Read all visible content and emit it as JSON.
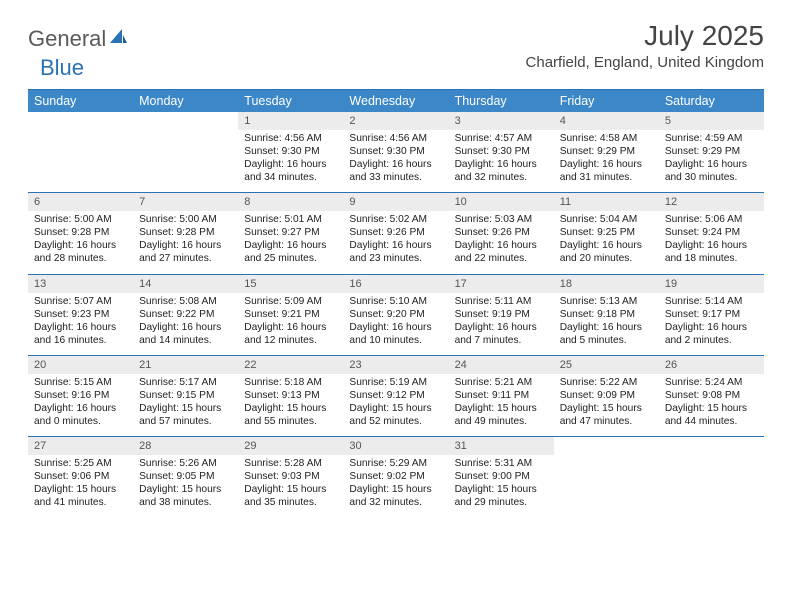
{
  "logo": {
    "general": "General",
    "blue": "Blue"
  },
  "title": "July 2025",
  "location": "Charfield, England, United Kingdom",
  "header_bg": "#3b87c8",
  "rule_color": "#2a72b5",
  "daynum_bg": "#ececec",
  "font_family": "Arial",
  "day_headers": [
    "Sunday",
    "Monday",
    "Tuesday",
    "Wednesday",
    "Thursday",
    "Friday",
    "Saturday"
  ],
  "weeks": [
    [
      {
        "n": "",
        "sunrise": "",
        "sunset": "",
        "daylight": ""
      },
      {
        "n": "",
        "sunrise": "",
        "sunset": "",
        "daylight": ""
      },
      {
        "n": "1",
        "sunrise": "Sunrise: 4:56 AM",
        "sunset": "Sunset: 9:30 PM",
        "daylight": "Daylight: 16 hours and 34 minutes."
      },
      {
        "n": "2",
        "sunrise": "Sunrise: 4:56 AM",
        "sunset": "Sunset: 9:30 PM",
        "daylight": "Daylight: 16 hours and 33 minutes."
      },
      {
        "n": "3",
        "sunrise": "Sunrise: 4:57 AM",
        "sunset": "Sunset: 9:30 PM",
        "daylight": "Daylight: 16 hours and 32 minutes."
      },
      {
        "n": "4",
        "sunrise": "Sunrise: 4:58 AM",
        "sunset": "Sunset: 9:29 PM",
        "daylight": "Daylight: 16 hours and 31 minutes."
      },
      {
        "n": "5",
        "sunrise": "Sunrise: 4:59 AM",
        "sunset": "Sunset: 9:29 PM",
        "daylight": "Daylight: 16 hours and 30 minutes."
      }
    ],
    [
      {
        "n": "6",
        "sunrise": "Sunrise: 5:00 AM",
        "sunset": "Sunset: 9:28 PM",
        "daylight": "Daylight: 16 hours and 28 minutes."
      },
      {
        "n": "7",
        "sunrise": "Sunrise: 5:00 AM",
        "sunset": "Sunset: 9:28 PM",
        "daylight": "Daylight: 16 hours and 27 minutes."
      },
      {
        "n": "8",
        "sunrise": "Sunrise: 5:01 AM",
        "sunset": "Sunset: 9:27 PM",
        "daylight": "Daylight: 16 hours and 25 minutes."
      },
      {
        "n": "9",
        "sunrise": "Sunrise: 5:02 AM",
        "sunset": "Sunset: 9:26 PM",
        "daylight": "Daylight: 16 hours and 23 minutes."
      },
      {
        "n": "10",
        "sunrise": "Sunrise: 5:03 AM",
        "sunset": "Sunset: 9:26 PM",
        "daylight": "Daylight: 16 hours and 22 minutes."
      },
      {
        "n": "11",
        "sunrise": "Sunrise: 5:04 AM",
        "sunset": "Sunset: 9:25 PM",
        "daylight": "Daylight: 16 hours and 20 minutes."
      },
      {
        "n": "12",
        "sunrise": "Sunrise: 5:06 AM",
        "sunset": "Sunset: 9:24 PM",
        "daylight": "Daylight: 16 hours and 18 minutes."
      }
    ],
    [
      {
        "n": "13",
        "sunrise": "Sunrise: 5:07 AM",
        "sunset": "Sunset: 9:23 PM",
        "daylight": "Daylight: 16 hours and 16 minutes."
      },
      {
        "n": "14",
        "sunrise": "Sunrise: 5:08 AM",
        "sunset": "Sunset: 9:22 PM",
        "daylight": "Daylight: 16 hours and 14 minutes."
      },
      {
        "n": "15",
        "sunrise": "Sunrise: 5:09 AM",
        "sunset": "Sunset: 9:21 PM",
        "daylight": "Daylight: 16 hours and 12 minutes."
      },
      {
        "n": "16",
        "sunrise": "Sunrise: 5:10 AM",
        "sunset": "Sunset: 9:20 PM",
        "daylight": "Daylight: 16 hours and 10 minutes."
      },
      {
        "n": "17",
        "sunrise": "Sunrise: 5:11 AM",
        "sunset": "Sunset: 9:19 PM",
        "daylight": "Daylight: 16 hours and 7 minutes."
      },
      {
        "n": "18",
        "sunrise": "Sunrise: 5:13 AM",
        "sunset": "Sunset: 9:18 PM",
        "daylight": "Daylight: 16 hours and 5 minutes."
      },
      {
        "n": "19",
        "sunrise": "Sunrise: 5:14 AM",
        "sunset": "Sunset: 9:17 PM",
        "daylight": "Daylight: 16 hours and 2 minutes."
      }
    ],
    [
      {
        "n": "20",
        "sunrise": "Sunrise: 5:15 AM",
        "sunset": "Sunset: 9:16 PM",
        "daylight": "Daylight: 16 hours and 0 minutes."
      },
      {
        "n": "21",
        "sunrise": "Sunrise: 5:17 AM",
        "sunset": "Sunset: 9:15 PM",
        "daylight": "Daylight: 15 hours and 57 minutes."
      },
      {
        "n": "22",
        "sunrise": "Sunrise: 5:18 AM",
        "sunset": "Sunset: 9:13 PM",
        "daylight": "Daylight: 15 hours and 55 minutes."
      },
      {
        "n": "23",
        "sunrise": "Sunrise: 5:19 AM",
        "sunset": "Sunset: 9:12 PM",
        "daylight": "Daylight: 15 hours and 52 minutes."
      },
      {
        "n": "24",
        "sunrise": "Sunrise: 5:21 AM",
        "sunset": "Sunset: 9:11 PM",
        "daylight": "Daylight: 15 hours and 49 minutes."
      },
      {
        "n": "25",
        "sunrise": "Sunrise: 5:22 AM",
        "sunset": "Sunset: 9:09 PM",
        "daylight": "Daylight: 15 hours and 47 minutes."
      },
      {
        "n": "26",
        "sunrise": "Sunrise: 5:24 AM",
        "sunset": "Sunset: 9:08 PM",
        "daylight": "Daylight: 15 hours and 44 minutes."
      }
    ],
    [
      {
        "n": "27",
        "sunrise": "Sunrise: 5:25 AM",
        "sunset": "Sunset: 9:06 PM",
        "daylight": "Daylight: 15 hours and 41 minutes."
      },
      {
        "n": "28",
        "sunrise": "Sunrise: 5:26 AM",
        "sunset": "Sunset: 9:05 PM",
        "daylight": "Daylight: 15 hours and 38 minutes."
      },
      {
        "n": "29",
        "sunrise": "Sunrise: 5:28 AM",
        "sunset": "Sunset: 9:03 PM",
        "daylight": "Daylight: 15 hours and 35 minutes."
      },
      {
        "n": "30",
        "sunrise": "Sunrise: 5:29 AM",
        "sunset": "Sunset: 9:02 PM",
        "daylight": "Daylight: 15 hours and 32 minutes."
      },
      {
        "n": "31",
        "sunrise": "Sunrise: 5:31 AM",
        "sunset": "Sunset: 9:00 PM",
        "daylight": "Daylight: 15 hours and 29 minutes."
      },
      {
        "n": "",
        "sunrise": "",
        "sunset": "",
        "daylight": ""
      },
      {
        "n": "",
        "sunrise": "",
        "sunset": "",
        "daylight": ""
      }
    ]
  ]
}
